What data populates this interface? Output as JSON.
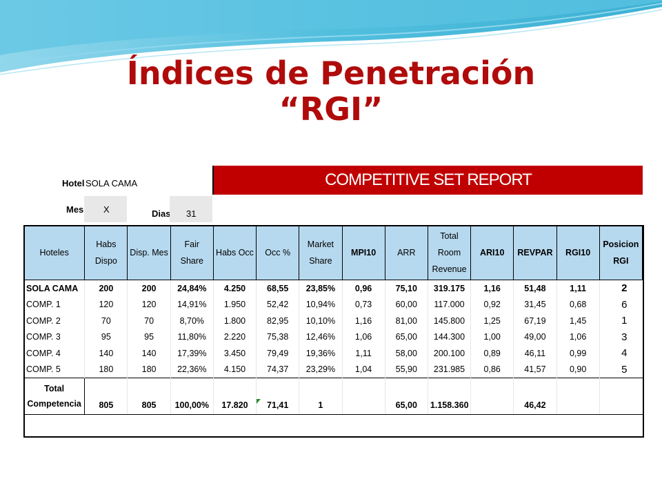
{
  "slide": {
    "title_line1": "Índices de Penetración",
    "title_line2": "“RGI”"
  },
  "report": {
    "hotel_label": "Hotel",
    "hotel_value": "SOLA CAMA",
    "banner": "COMPETITIVE SET REPORT",
    "mes_label": "Mes",
    "mes_value": "X",
    "dias_label": "Dias",
    "dias_value": "31"
  },
  "table": {
    "headers": [
      "Hoteles",
      "Habs Dispo",
      "Disp. Mes",
      "Fair Share",
      "Habs Occ",
      "Occ %",
      "Market Share",
      "MPI10",
      "ARR",
      "Total Room Revenue",
      "ARI10",
      "REVPAR",
      "RGI10",
      "Posicion RGI"
    ],
    "rows": [
      [
        "SOLA CAMA",
        "200",
        "200",
        "24,84%",
        "4.250",
        "68,55",
        "23,85%",
        "0,96",
        "75,10",
        "319.175",
        "1,16",
        "51,48",
        "1,11",
        "2"
      ],
      [
        "COMP. 1",
        "120",
        "120",
        "14,91%",
        "1.950",
        "52,42",
        "10,94%",
        "0,73",
        "60,00",
        "117.000",
        "0,92",
        "31,45",
        "0,68",
        "6"
      ],
      [
        "COMP. 2",
        "70",
        "70",
        "8,70%",
        "1.800",
        "82,95",
        "10,10%",
        "1,16",
        "81,00",
        "145.800",
        "1,25",
        "67,19",
        "1,45",
        "1"
      ],
      [
        "COMP. 3",
        "95",
        "95",
        "11,80%",
        "2.220",
        "75,38",
        "12,46%",
        "1,06",
        "65,00",
        "144.300",
        "1,00",
        "49,00",
        "1,06",
        "3"
      ],
      [
        "COMP. 4",
        "140",
        "140",
        "17,39%",
        "3.450",
        "79,49",
        "19,36%",
        "1,11",
        "58,00",
        "200.100",
        "0,89",
        "46,11",
        "0,99",
        "4"
      ],
      [
        "COMP. 5",
        "180",
        "180",
        "22,36%",
        "4.150",
        "74,37",
        "23,29%",
        "1,04",
        "55,90",
        "231.985",
        "0,86",
        "41,57",
        "0,90",
        "5"
      ]
    ],
    "total": {
      "label_line1": "Total",
      "label_line2": "Competencia",
      "values": [
        "805",
        "805",
        "100,00%",
        "17.820",
        "71,41",
        "1",
        "",
        "65,00",
        "1.158.360",
        "",
        "46,42",
        "",
        ""
      ]
    }
  },
  "colors": {
    "title": "#b00b0b",
    "banner": "#c00000",
    "header_fill": "#b7d9ef"
  }
}
